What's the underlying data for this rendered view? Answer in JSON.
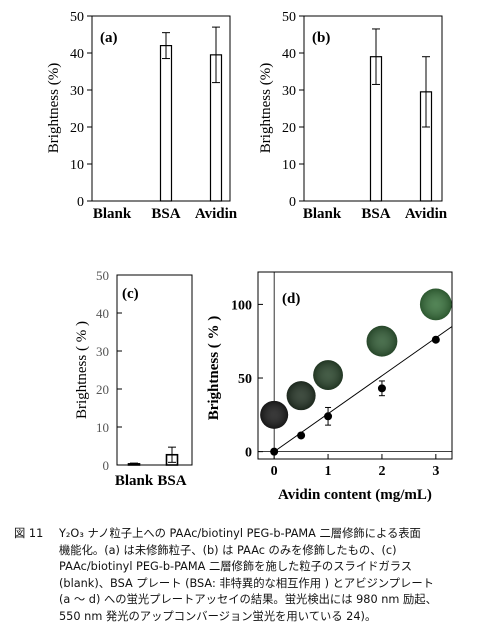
{
  "chart_data": [
    {
      "type": "bar",
      "panel_label": "(a)",
      "ylabel": "Brightness (%)",
      "ylim": [
        0,
        50
      ],
      "yticks": [
        "0",
        "10",
        "20",
        "30",
        "40",
        "50"
      ],
      "categories": [
        "Blank",
        "BSA",
        "Avidin"
      ],
      "values": [
        0,
        42,
        39.5
      ],
      "errors": [
        0,
        3.5,
        7.5
      ]
    },
    {
      "type": "bar",
      "panel_label": "(b)",
      "ylabel": "Brightness (%)",
      "ylim": [
        0,
        50
      ],
      "yticks": [
        "0",
        "10",
        "20",
        "30",
        "40",
        "50"
      ],
      "categories": [
        "Blank",
        "BSA",
        "Avidin"
      ],
      "values": [
        0,
        39,
        29.5
      ],
      "errors": [
        0,
        7.5,
        9.5
      ]
    },
    {
      "type": "bar",
      "panel_label": "(c)",
      "ylabel": "Brightness ( % )",
      "ylim": [
        0,
        50
      ],
      "yticks": [
        "0",
        "10",
        "20",
        "30",
        "40",
        "50"
      ],
      "categories": [
        "Blank",
        "BSA"
      ],
      "values": [
        0.3,
        2.7
      ],
      "errors": [
        0.2,
        2.0
      ]
    },
    {
      "type": "scatter",
      "panel_label": "(d)",
      "xlabel": "Avidin content (mg/mL)",
      "ylabel": "Brightness ( % )",
      "xlim": [
        -0.3,
        3.3
      ],
      "ylim": [
        -5,
        122
      ],
      "xticks": [
        "0",
        "1",
        "2",
        "3"
      ],
      "yticks": [
        "0",
        "50",
        "100"
      ],
      "x": [
        0,
        0.5,
        1,
        2,
        3
      ],
      "y": [
        0,
        11,
        24,
        43,
        76
      ],
      "errors": [
        0,
        0,
        6,
        5,
        0
      ],
      "fit_line": {
        "x": [
          0,
          3.3
        ],
        "y": [
          0,
          85
        ]
      },
      "spots": [
        {
          "x": 0,
          "y": 25,
          "brightness": 0.0
        },
        {
          "x": 0.5,
          "y": 38,
          "brightness": 0.25
        },
        {
          "x": 1,
          "y": 52,
          "brightness": 0.45
        },
        {
          "x": 2,
          "y": 75,
          "brightness": 0.7
        },
        {
          "x": 3,
          "y": 100,
          "brightness": 0.95
        }
      ]
    }
  ],
  "caption": {
    "label": "図 11",
    "lines": [
      "Y₂O₃ ナノ粒子上への PAAc/biotinyl PEG-b-PAMA 二層修飾による表面",
      "機能化。(a) は未修飾粒子、(b) は PAAc のみを修飾したもの、(c)",
      "PAAc/biotinyl PEG-b-PAMA 二層修飾を施した粒子のスライドガラス",
      "(blank)、BSA プレート (BSA: 非特異的な相互作用 ) とアビジンプレート",
      "(a ～ d) への蛍光プレートアッセイの結果。蛍光検出には 980 nm 励起、",
      "550 nm 発光のアップコンバージョン蛍光を用いている 24)。"
    ]
  }
}
